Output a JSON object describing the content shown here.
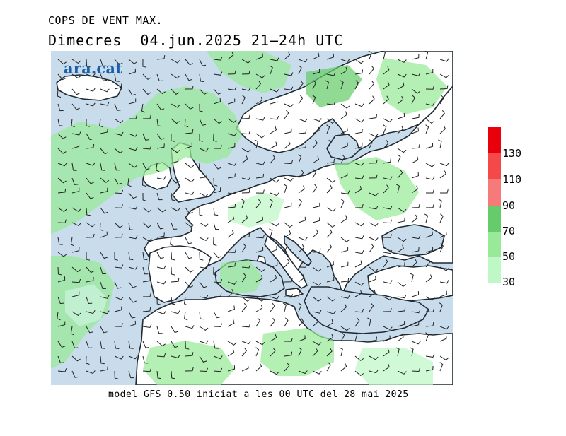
{
  "header": {
    "title": "COPS DE VENT MAX.",
    "subtitle": "Dimecres  04.jun.2025 21–24h UTC"
  },
  "map": {
    "logo_text": "ara.cat",
    "sea_color": "#c9dcec",
    "land_color": "#ffffff",
    "coast_color": "#1f2a33"
  },
  "legend": {
    "labels": [
      "130",
      "110",
      "90",
      "70",
      "50",
      "30"
    ],
    "colors": [
      "#e8000b",
      "#f54848",
      "#f77a7a",
      "#66cc6b",
      "#98ea98",
      "#bef8c6"
    ]
  },
  "footer": {
    "text": "model GFS 0.50 iniciat a les 00 UTC del 28 mai 2025"
  }
}
